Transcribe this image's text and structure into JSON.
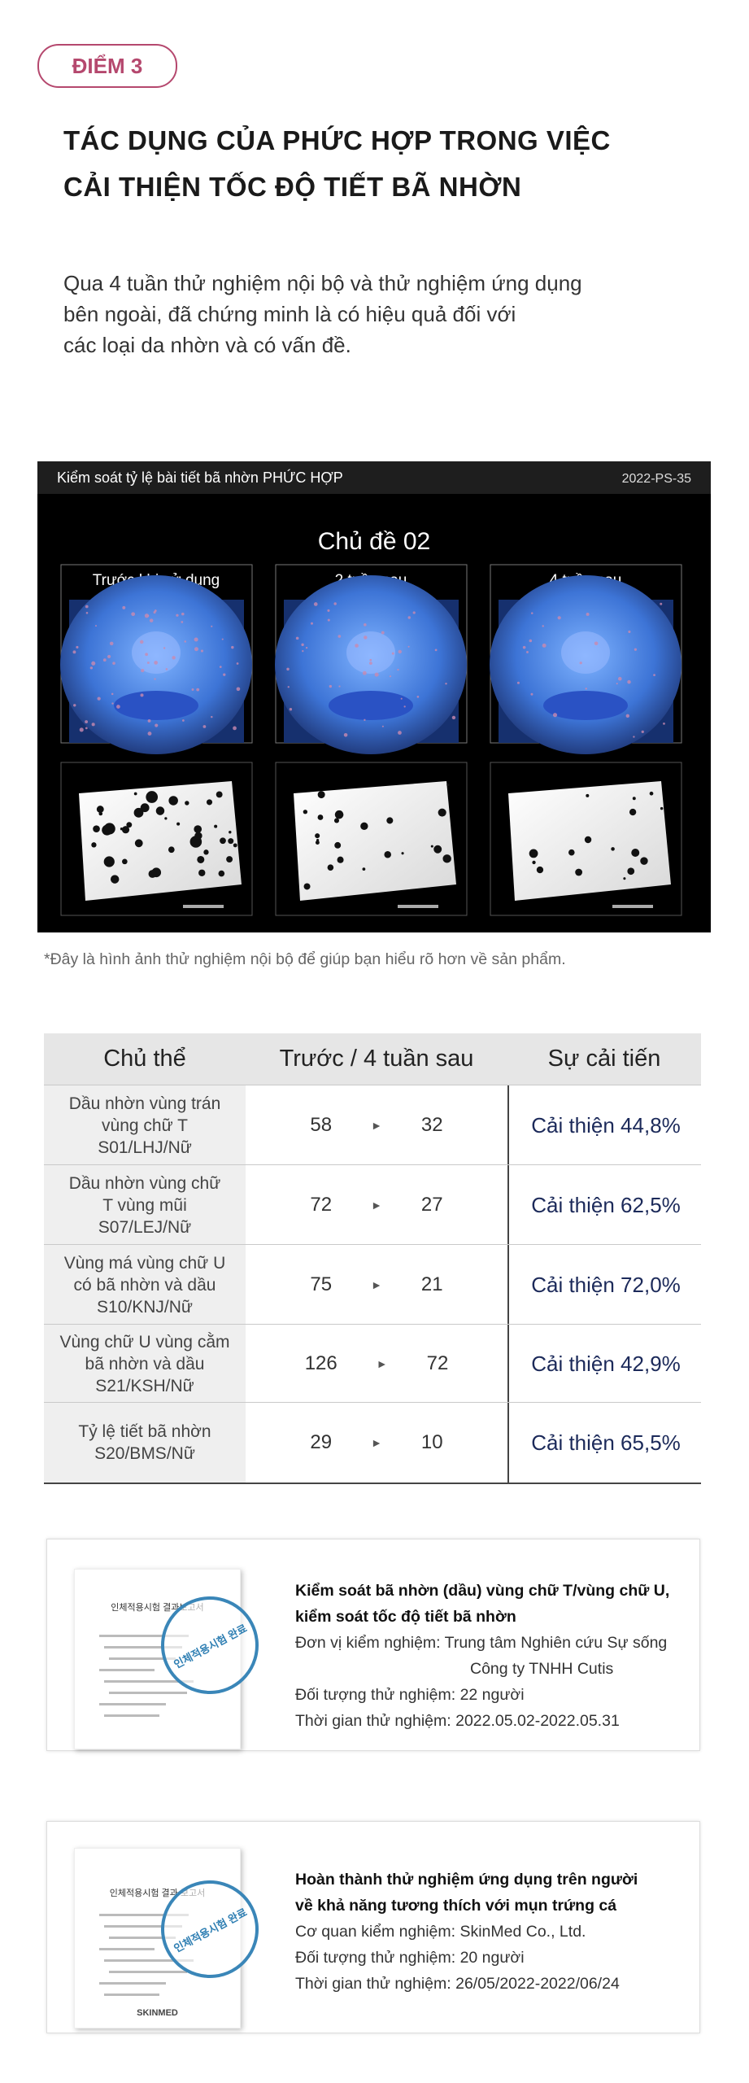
{
  "badge": "ĐIỂM 3",
  "title_lines": [
    "TÁC DỤNG CỦA PHỨC HỢP TRONG VIỆC",
    "CẢI THIỆN TỐC ĐỘ TIẾT BÃ NHỜN"
  ],
  "intro_lines": [
    "Qua 4 tuần thử nghiệm nội bộ và thử nghiệm ứng dụng",
    "bên ngoài, đã chứng minh là có hiệu quả đối với",
    "các loại da nhờn và có vấn đề."
  ],
  "photo_panel": {
    "header": "Kiểm soát tỷ lệ bài tiết bã nhờn PHỨC HỢP",
    "code": "2022-PS-35",
    "subject": "Chủ đề 02",
    "columns": [
      "Trước khi sử dụng",
      "2 tuần sau",
      "4 tuần sau"
    ]
  },
  "footnote": "*Đây là hình ảnh thử nghiệm nội bộ để giúp bạn hiểu rõ hơn về sản phẩm.",
  "table": {
    "headers": [
      "Chủ thể",
      "Trước / 4 tuần sau",
      "Sự cải tiến"
    ],
    "rows": [
      {
        "subject_lines": [
          "Dầu nhờn vùng trán",
          "vùng chữ T",
          "S01/LHJ/Nữ"
        ],
        "before": 58,
        "after": 32,
        "improvement": "Cải thiện 44,8%"
      },
      {
        "subject_lines": [
          "Dầu nhờn vùng chữ",
          "T vùng mũi",
          "S07/LEJ/Nữ"
        ],
        "before": 72,
        "after": 27,
        "improvement": "Cải thiện 62,5%"
      },
      {
        "subject_lines": [
          "Vùng má vùng chữ U",
          "có bã nhờn và dầu",
          "S10/KNJ/Nữ"
        ],
        "before": 75,
        "after": 21,
        "improvement": "Cải thiện 72,0%"
      },
      {
        "subject_lines": [
          "Vùng chữ U vùng cằm",
          "bã nhờn và dầu",
          "S21/KSH/Nữ"
        ],
        "before": 126,
        "after": 72,
        "improvement": "Cải thiện 42,9%"
      },
      {
        "subject_lines": [
          "Tỷ lệ tiết bã nhờn",
          "S20/BMS/Nữ"
        ],
        "before": 29,
        "after": 10,
        "improvement": "Cải thiện 65,5%"
      }
    ]
  },
  "reports": [
    {
      "doc_title": "인체적용시험 결과보고서",
      "stamp": "인체적용시험 완료",
      "title_lines": [
        "Kiểm soát bã nhờn (dầu) vùng chữ T/vùng chữ U,",
        "kiểm soát tốc độ tiết bã nhờn"
      ],
      "lines": [
        "Đơn vị kiểm nghiệm: Trung tâm Nghiên cứu Sự sống",
        "Công ty TNHH Cutis",
        "Đối tượng thử nghiệm: 22 người",
        "Thời gian thử nghiệm: 2022.05.02-2022.05.31"
      ]
    },
    {
      "doc_title": "인체적용시험 결과 보고서",
      "stamp": "인체적용시험 완료",
      "logo": "SKINMED",
      "title_lines": [
        "Hoàn thành thử nghiệm ứng dụng trên người",
        "về khả năng tương thích với mụn trứng cá"
      ],
      "lines": [
        "Cơ quan kiểm nghiệm: SkinMed Co., Ltd.",
        "Đối tượng thử nghiệm: 20 người",
        "Thời gian thử nghiệm: 26/05/2022-2022/06/24"
      ]
    }
  ]
}
